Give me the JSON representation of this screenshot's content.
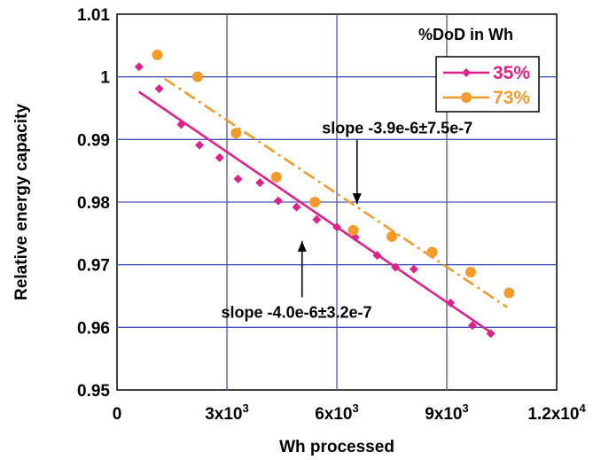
{
  "chart_data": {
    "type": "scatter",
    "xlabel": "Wh processed",
    "ylabel": "Relative energy capacity",
    "xlim": [
      0,
      12000
    ],
    "ylim": [
      0.95,
      1.01
    ],
    "x_ticks": [
      {
        "value": 0,
        "base": "0",
        "exp": ""
      },
      {
        "value": 3000,
        "base": "3x10",
        "exp": "3"
      },
      {
        "value": 6000,
        "base": "6x10",
        "exp": "3"
      },
      {
        "value": 9000,
        "base": "9x10",
        "exp": "3"
      },
      {
        "value": 12000,
        "base": "1.2x10",
        "exp": "4"
      }
    ],
    "y_ticks": [
      {
        "value": 0.95,
        "label": "0.95"
      },
      {
        "value": 0.96,
        "label": "0.96"
      },
      {
        "value": 0.97,
        "label": "0.97"
      },
      {
        "value": 0.98,
        "label": "0.98"
      },
      {
        "value": 0.99,
        "label": "0.99"
      },
      {
        "value": 1.0,
        "label": "1"
      },
      {
        "value": 1.01,
        "label": "1.01"
      }
    ],
    "grid": true,
    "legend": {
      "title": "%DoD in Wh",
      "placement": "top-right"
    },
    "series": [
      {
        "name": "35%",
        "color": "#e0218a",
        "marker": "diamond",
        "points": [
          [
            600,
            1.0016
          ],
          [
            1150,
            0.9981
          ],
          [
            1750,
            0.9924
          ],
          [
            2250,
            0.9891
          ],
          [
            2800,
            0.9871
          ],
          [
            3300,
            0.9837
          ],
          [
            3900,
            0.9831
          ],
          [
            4400,
            0.9802
          ],
          [
            4900,
            0.9792
          ],
          [
            5450,
            0.9772
          ],
          [
            6000,
            0.976
          ],
          [
            6500,
            0.9744
          ],
          [
            7100,
            0.9715
          ],
          [
            7600,
            0.9696
          ],
          [
            8100,
            0.9693
          ],
          [
            9100,
            0.9639
          ],
          [
            9700,
            0.9603
          ],
          [
            10200,
            0.959
          ]
        ],
        "fit": [
          [
            600,
            0.9976
          ],
          [
            10200,
            0.9592
          ]
        ],
        "fit_style": "solid"
      },
      {
        "name": "73%",
        "color": "#f39a2b",
        "marker": "circle",
        "points": [
          [
            1100,
            1.0035
          ],
          [
            2200,
            1.0
          ],
          [
            3250,
            0.991
          ],
          [
            4350,
            0.984
          ],
          [
            5400,
            0.98
          ],
          [
            6450,
            0.9755
          ],
          [
            7500,
            0.9745
          ],
          [
            8600,
            0.972
          ],
          [
            9650,
            0.9688
          ],
          [
            10700,
            0.9655
          ]
        ],
        "fit": [
          [
            1300,
            0.9997
          ],
          [
            10650,
            0.9632
          ]
        ],
        "fit_style": "dashdot"
      }
    ],
    "annotations": [
      {
        "text": "slope -3.9e-6±7.5e-7",
        "x": 7650,
        "y": 0.991,
        "anchor": "middle",
        "arrow_from": [
          6550,
          0.99
        ],
        "arrow_to": [
          6550,
          0.9797
        ]
      },
      {
        "text": "slope -4.0e-6±3.2e-7",
        "x": 4900,
        "y": 0.9615,
        "anchor": "middle",
        "arrow_from": [
          5050,
          0.9648
        ],
        "arrow_to": [
          5050,
          0.9738
        ]
      }
    ]
  }
}
